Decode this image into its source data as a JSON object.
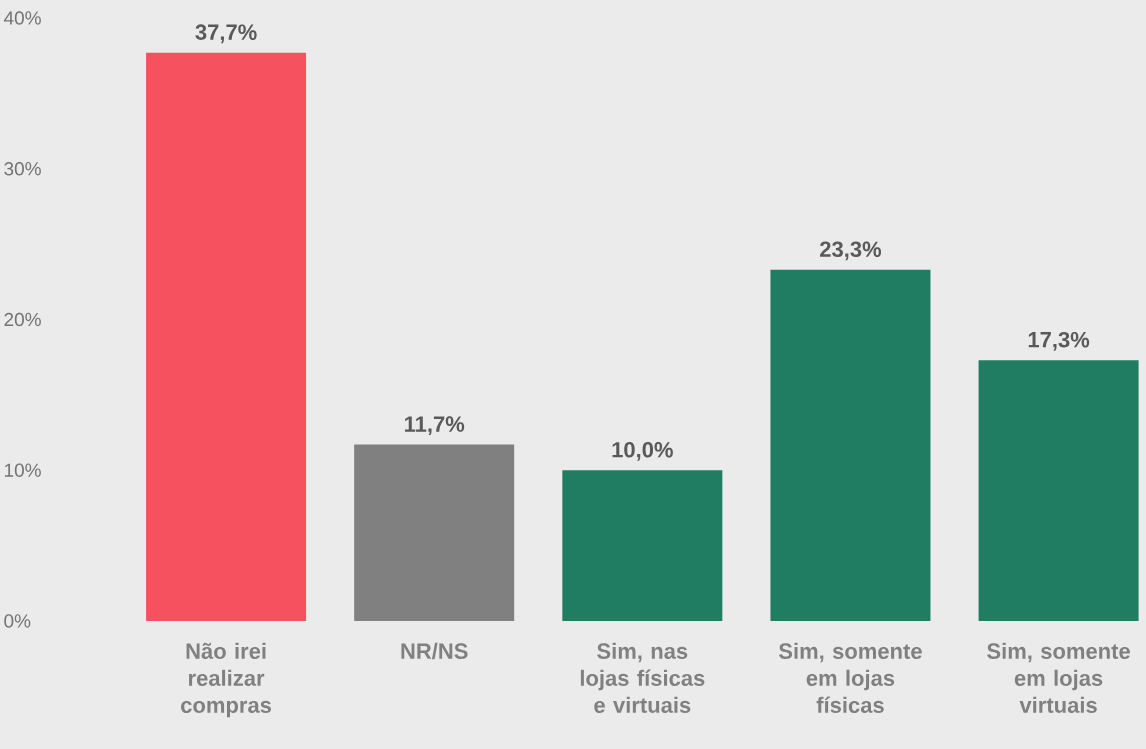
{
  "chart_data": {
    "type": "bar",
    "categories": [
      "Não irei realizar compras",
      "NR/NS",
      "Sim, nas lojas físicas e virtuais",
      "Sim, somente em lojas físicas",
      "Sim, somente em lojas virtuais"
    ],
    "values": [
      37.7,
      11.7,
      10.0,
      23.3,
      17.3
    ],
    "colors": [
      "#f5515f",
      "#808080",
      "#217d62",
      "#217d62",
      "#217d62"
    ],
    "value_labels": [
      "37,7%",
      "11,7%",
      "10,0%",
      "23,3%",
      "17,3%"
    ],
    "ylim": [
      0,
      40
    ],
    "yticks": [
      {
        "value": 0,
        "label": "0%"
      },
      {
        "value": 10,
        "label": "10%"
      },
      {
        "value": 20,
        "label": "20%"
      },
      {
        "value": 30,
        "label": "30%"
      },
      {
        "value": 40,
        "label": "40%"
      }
    ],
    "grid": false
  }
}
